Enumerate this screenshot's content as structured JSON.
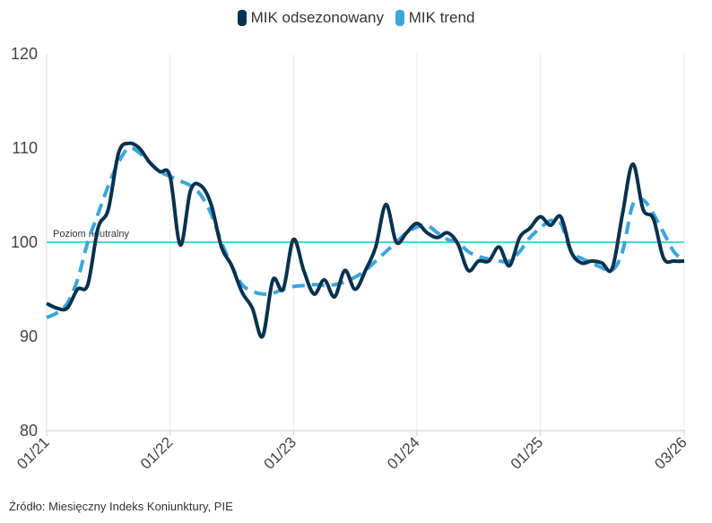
{
  "chart_data": {
    "type": "line",
    "title": "",
    "xlabel": "",
    "ylabel": "",
    "ylim": [
      80,
      120
    ],
    "yticks": [
      "80",
      "90",
      "100",
      "110",
      "120"
    ],
    "xticks": [
      "01/21",
      "01/22",
      "01/23",
      "01/24",
      "01/25",
      "03/26"
    ],
    "x_range": [
      "2021-01",
      "2026-03"
    ],
    "grid": "x-only",
    "legend_position": "top-center",
    "reference_line": {
      "value": 100,
      "label": "Poziom neutralny",
      "color": "#40e0c8"
    },
    "series": [
      {
        "name": "MIK odsezonowany",
        "style": "solid",
        "color": "#06324f",
        "x": [
          "2021-01",
          "2021-02",
          "2021-03",
          "2021-04",
          "2021-05",
          "2021-06",
          "2021-07",
          "2021-08",
          "2021-09",
          "2021-10",
          "2021-11",
          "2021-12",
          "2022-01",
          "2022-02",
          "2022-03",
          "2022-04",
          "2022-05",
          "2022-06",
          "2022-07",
          "2022-08",
          "2022-09",
          "2022-10",
          "2022-11",
          "2022-12",
          "2023-01",
          "2023-02",
          "2023-03",
          "2023-04",
          "2023-05",
          "2023-06",
          "2023-07",
          "2023-08",
          "2023-09",
          "2023-10",
          "2023-11",
          "2023-12",
          "2024-01",
          "2024-02",
          "2024-03",
          "2024-04",
          "2024-05",
          "2024-06",
          "2024-07",
          "2024-08",
          "2024-09",
          "2024-10",
          "2024-11",
          "2024-12",
          "2025-01",
          "2025-02",
          "2025-03",
          "2025-04",
          "2025-05",
          "2025-06",
          "2025-07",
          "2025-08",
          "2025-09",
          "2025-10",
          "2025-11",
          "2025-12",
          "2026-01",
          "2026-02",
          "2026-03"
        ],
        "values": [
          93.5,
          93.0,
          93.0,
          95.0,
          95.5,
          101.5,
          103.5,
          109.5,
          110.5,
          110.0,
          108.5,
          107.5,
          107.0,
          99.7,
          105.5,
          106.0,
          104.0,
          99.5,
          97.5,
          94.7,
          93.0,
          90.0,
          96.0,
          95.0,
          100.3,
          97.0,
          94.5,
          96.0,
          94.2,
          97.0,
          95.0,
          97.0,
          99.5,
          104.0,
          100.0,
          101.0,
          102.0,
          101.0,
          100.5,
          101.0,
          99.8,
          97.0,
          98.0,
          98.0,
          99.5,
          97.5,
          100.5,
          101.5,
          102.7,
          101.8,
          102.7,
          99.0,
          97.8,
          98.0,
          97.8,
          97.2,
          103.0,
          108.3,
          103.5,
          102.5,
          98.3,
          98.0,
          98.0
        ]
      },
      {
        "name": "MIK trend",
        "style": "dashed",
        "color": "#3aa6dc",
        "x": [
          "2021-01",
          "2021-02",
          "2021-03",
          "2021-04",
          "2021-05",
          "2021-06",
          "2021-07",
          "2021-08",
          "2021-09",
          "2021-10",
          "2021-11",
          "2021-12",
          "2022-01",
          "2022-02",
          "2022-03",
          "2022-04",
          "2022-05",
          "2022-06",
          "2022-07",
          "2022-08",
          "2022-09",
          "2022-10",
          "2022-11",
          "2022-12",
          "2023-01",
          "2023-02",
          "2023-03",
          "2023-04",
          "2023-05",
          "2023-06",
          "2023-07",
          "2023-08",
          "2023-09",
          "2023-10",
          "2023-11",
          "2023-12",
          "2024-01",
          "2024-02",
          "2024-03",
          "2024-04",
          "2024-05",
          "2024-06",
          "2024-07",
          "2024-08",
          "2024-09",
          "2024-10",
          "2024-11",
          "2024-12",
          "2025-01",
          "2025-02",
          "2025-03",
          "2025-04",
          "2025-05",
          "2025-06",
          "2025-07",
          "2025-08",
          "2025-09",
          "2025-10",
          "2025-11",
          "2025-12",
          "2026-01",
          "2026-02",
          "2026-03"
        ],
        "values": [
          92.0,
          92.5,
          93.5,
          96.0,
          100.0,
          103.0,
          106.0,
          108.5,
          110.0,
          109.5,
          108.5,
          107.5,
          107.0,
          106.5,
          106.0,
          105.0,
          103.0,
          100.0,
          97.5,
          95.5,
          94.8,
          94.5,
          94.6,
          95.0,
          95.3,
          95.4,
          95.5,
          95.4,
          95.5,
          95.8,
          96.3,
          97.0,
          98.0,
          99.0,
          100.0,
          101.0,
          101.6,
          101.8,
          101.0,
          100.3,
          100.0,
          99.0,
          98.5,
          98.2,
          98.0,
          98.0,
          99.0,
          100.5,
          101.5,
          102.3,
          102.0,
          99.0,
          98.3,
          97.8,
          97.3,
          97.0,
          99.0,
          104.0,
          104.5,
          103.0,
          101.0,
          99.0,
          98.0
        ]
      }
    ]
  },
  "source_text": "Źródło: Miesięczny Indeks Koniunktury, PIE"
}
